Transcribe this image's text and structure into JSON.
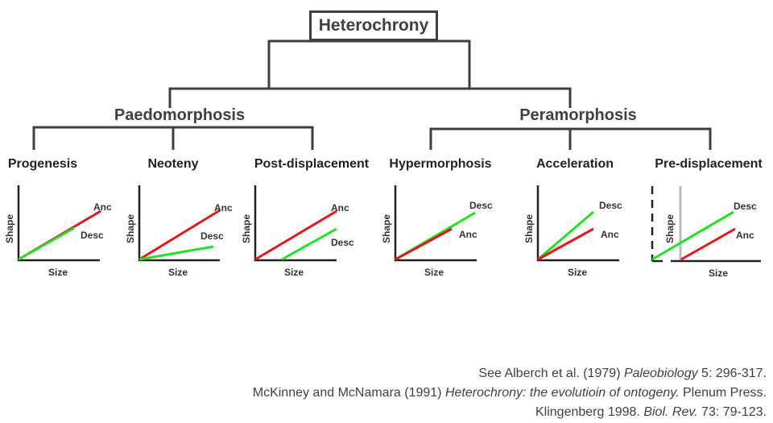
{
  "root": {
    "label": "Heterochrony"
  },
  "branches": [
    {
      "label": "Paedomorphosis",
      "modes": [
        {
          "title": "Progenesis",
          "lines": [
            {
              "name": "Anc",
              "color": "#e41a1a"
            },
            {
              "name": "Desc",
              "color": "#22e022"
            }
          ],
          "axis_x": "Size",
          "axis_y": "Shape"
        },
        {
          "title": "Neoteny",
          "lines": [
            {
              "name": "Anc",
              "color": "#e41a1a"
            },
            {
              "name": "Desc",
              "color": "#22e022"
            }
          ],
          "axis_x": "Size",
          "axis_y": "Shape"
        },
        {
          "title": "Post-displacement",
          "lines": [
            {
              "name": "Anc",
              "color": "#e41a1a"
            },
            {
              "name": "Desc",
              "color": "#22e022"
            }
          ],
          "axis_x": "Size",
          "axis_y": "Shape"
        }
      ]
    },
    {
      "label": "Peramorphosis",
      "modes": [
        {
          "title": "Hypermorphosis",
          "lines": [
            {
              "name": "Desc",
              "color": "#22e022"
            },
            {
              "name": "Anc",
              "color": "#e41a1a"
            }
          ],
          "axis_x": "Size",
          "axis_y": "Shape"
        },
        {
          "title": "Acceleration",
          "lines": [
            {
              "name": "Desc",
              "color": "#22e022"
            },
            {
              "name": "Anc",
              "color": "#e41a1a"
            }
          ],
          "axis_x": "Size",
          "axis_y": "Shape"
        },
        {
          "title": "Pre-displacement",
          "lines": [
            {
              "name": "Desc",
              "color": "#22e022"
            },
            {
              "name": "Anc",
              "color": "#e41a1a"
            }
          ],
          "axis_x": "Size",
          "axis_y": "Shape"
        }
      ]
    }
  ],
  "references": [
    {
      "pre": "See Alberch et al. (1979) ",
      "italic": "Paleobiology",
      "post": " 5: 296-317."
    },
    {
      "pre": "McKinney and McNamara (1991)  ",
      "italic": "Heterochrony: the evolutioin of ontogeny.",
      "post": " Plenum Press."
    },
    {
      "pre": "Klingenberg 1998. ",
      "italic": "Biol. Rev.",
      "post": " 73: 79-123."
    }
  ],
  "colors": {
    "connector": "#3f3f3f",
    "axis": "#222222",
    "ancestor": "#e41a1a",
    "descendant": "#22e022",
    "onset_marker": "#bbbbbb"
  }
}
